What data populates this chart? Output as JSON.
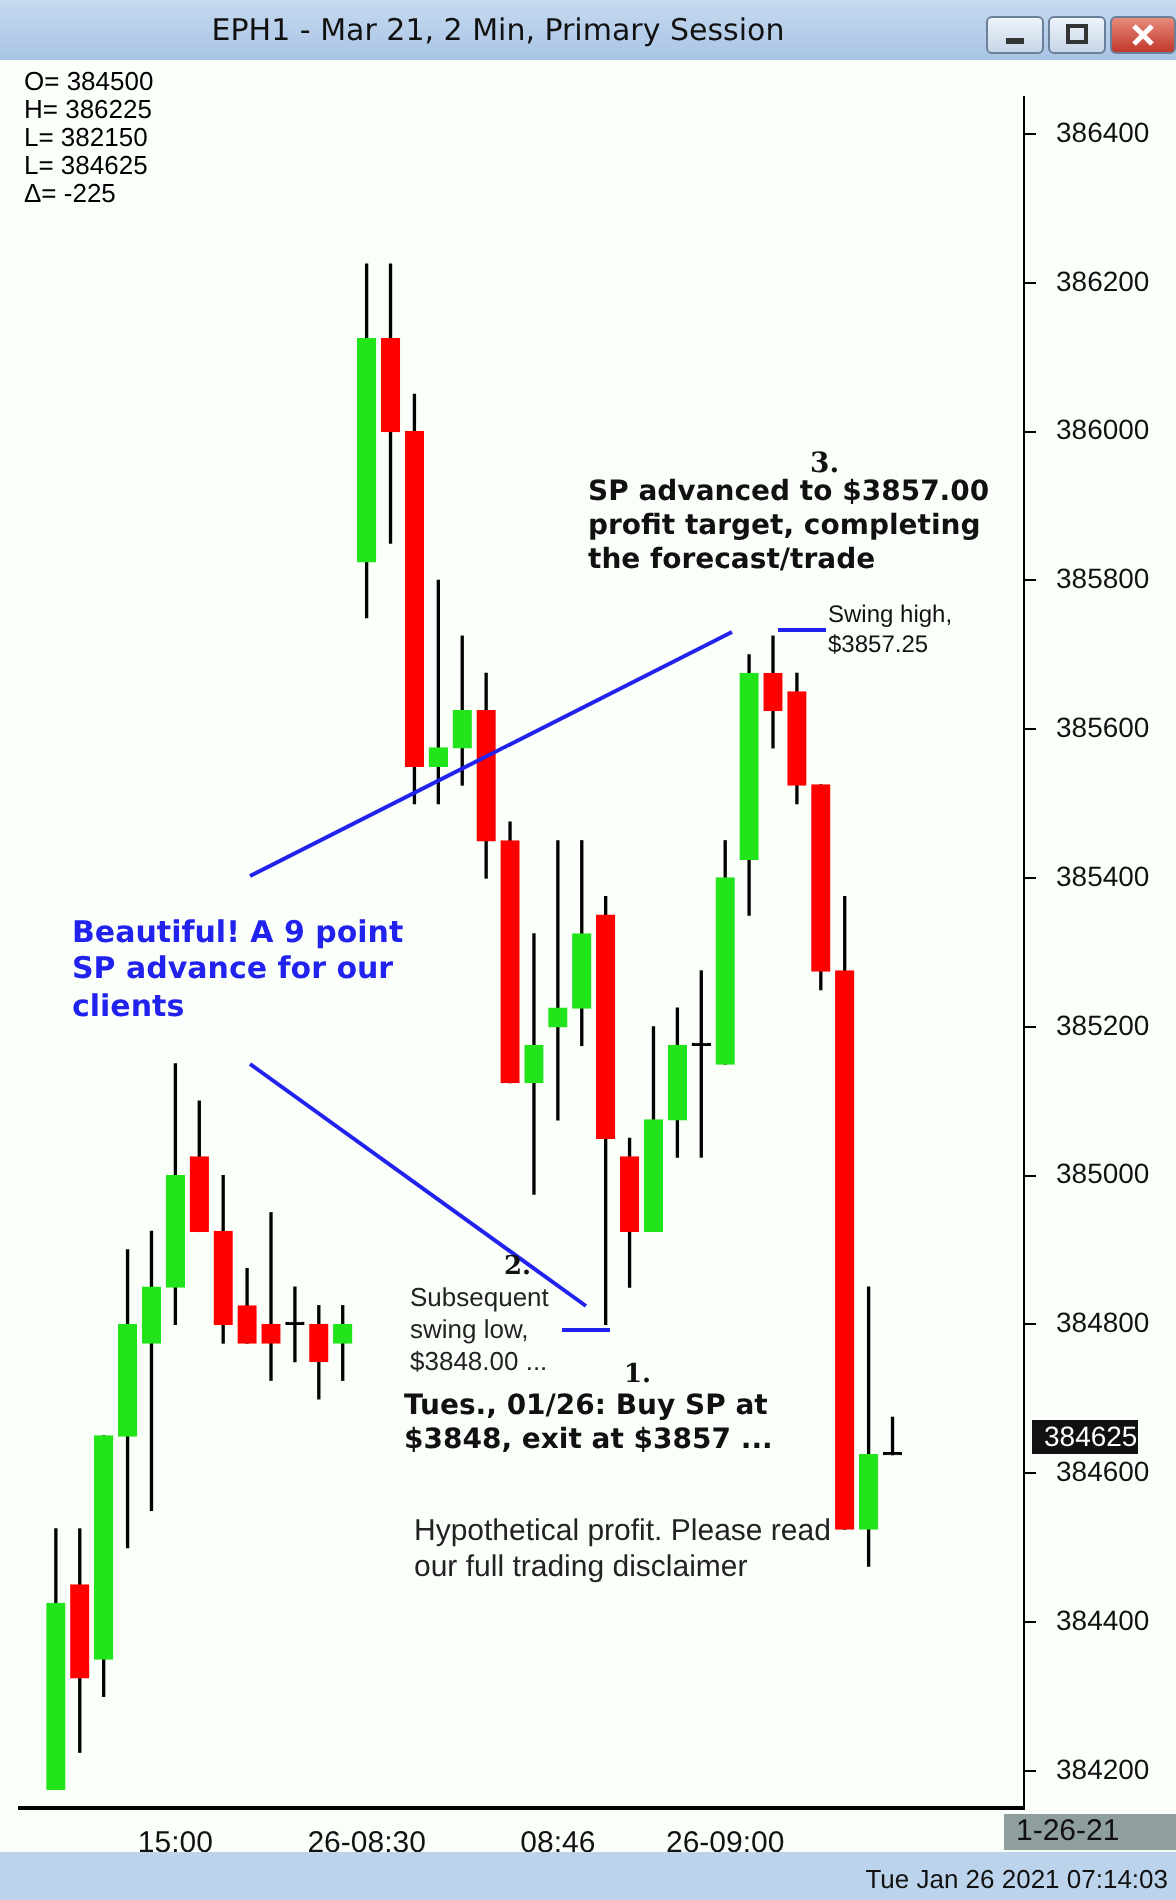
{
  "chart_data": {
    "type": "candlestick",
    "title": "EPH1 - Mar 21, 2 Min, Primary Session",
    "categories": [
      null,
      null,
      null,
      null,
      null,
      null,
      "15:00",
      null,
      null,
      null,
      null,
      null,
      null,
      null,
      "26-08:30",
      null,
      null,
      null,
      null,
      null,
      null,
      null,
      "08:46",
      null,
      null,
      null,
      null,
      null,
      null,
      "26-09:00",
      null,
      null,
      null,
      null,
      null,
      null,
      null,
      null,
      null,
      null,
      null,
      null
    ],
    "ohlc": [
      null,
      [
        384175,
        384525,
        384175,
        384425
      ],
      [
        384450,
        384525,
        384225,
        384325
      ],
      [
        384350,
        384650,
        384300,
        384650
      ],
      [
        384650,
        384900,
        384500,
        384800
      ],
      [
        384775,
        384925,
        384550,
        384850
      ],
      [
        384850,
        385150,
        384800,
        385000
      ],
      [
        385025,
        385100,
        384925,
        384925
      ],
      [
        384925,
        385000,
        384775,
        384800
      ],
      [
        384825,
        384875,
        384775,
        384775
      ],
      [
        384800,
        384950,
        384725,
        384775
      ],
      [
        384800,
        384850,
        384750,
        384800
      ],
      [
        384800,
        384825,
        384700,
        384750
      ],
      [
        384775,
        384825,
        384725,
        384800
      ],
      [
        385825,
        386225,
        385750,
        386125
      ],
      [
        386125,
        386225,
        385850,
        386000
      ],
      [
        386000,
        386050,
        385500,
        385550
      ],
      [
        385550,
        385800,
        385500,
        385575
      ],
      [
        385575,
        385725,
        385525,
        385625
      ],
      [
        385625,
        385675,
        385400,
        385450
      ],
      [
        385450,
        385475,
        385125,
        385125
      ],
      [
        385125,
        385325,
        384975,
        385175
      ],
      [
        385200,
        385450,
        385075,
        385225
      ],
      [
        385225,
        385450,
        385175,
        385325
      ],
      [
        385350,
        385375,
        384800,
        385050
      ],
      [
        385025,
        385050,
        384850,
        384925
      ],
      [
        384925,
        385200,
        384925,
        385075
      ],
      [
        385075,
        385225,
        385025,
        385175
      ],
      [
        385175,
        385275,
        385025,
        385175
      ],
      [
        385150,
        385450,
        385150,
        385400
      ],
      [
        385425,
        385700,
        385350,
        385675
      ],
      [
        385675,
        385725,
        385575,
        385625
      ],
      [
        385650,
        385675,
        385500,
        385525
      ],
      [
        385525,
        385525,
        385250,
        385275
      ],
      [
        385275,
        385375,
        384525,
        384525
      ],
      [
        384525,
        384850,
        384475,
        384625
      ],
      [
        384625,
        384675,
        384625,
        384625
      ],
      null,
      null,
      null,
      null,
      null
    ],
    "colors": [
      null,
      "#22e41a",
      "#ff0000",
      "#22e41a",
      "#22e41a",
      "#22e41a",
      "#22e41a",
      "#ff0000",
      "#ff0000",
      "#ff0000",
      "#ff0000",
      "#000000",
      "#ff0000",
      "#22e41a",
      "#22e41a",
      "#ff0000",
      "#ff0000",
      "#22e41a",
      "#22e41a",
      "#ff0000",
      "#ff0000",
      "#22e41a",
      "#22e41a",
      "#22e41a",
      "#ff0000",
      "#ff0000",
      "#22e41a",
      "#22e41a",
      "#000000",
      "#22e41a",
      "#22e41a",
      "#ff0000",
      "#ff0000",
      "#ff0000",
      "#ff0000",
      "#22e41a",
      "#000000",
      null,
      null,
      null,
      null,
      null
    ],
    "ylim": [
      384150,
      386450
    ],
    "yticks": [
      384200,
      384400,
      384600,
      384800,
      385000,
      385200,
      385400,
      385600,
      385800,
      386000,
      386200,
      386400
    ],
    "annotations": [
      "O= 384500",
      "H= 386225",
      "L= 382150",
      "L= 384625",
      "Δ= -225",
      "3.",
      "SP advanced to $3857.00 profit target, completing the forecast/trade",
      "Swing high, $3857.25",
      "Beautiful! A 9 point SP advance for our clients",
      "2.",
      "Subsequent swing low, $3848.00 ...",
      "1.",
      "Tues., 01/26: Buy SP at $3848, exit at $3857 ...",
      "Hypothetical profit. Please read our full trading disclaimer",
      "384625",
      "1-26-21",
      "Tue Jan 26 2021 07:14:03"
    ]
  }
}
